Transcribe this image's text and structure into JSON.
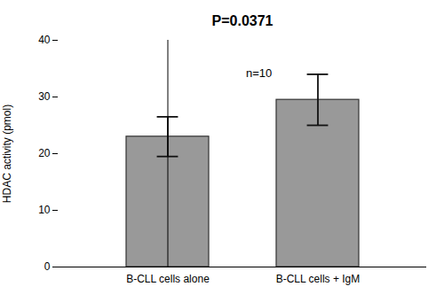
{
  "chart_data": {
    "type": "bar",
    "title": "P=0.0371",
    "categories": [
      "B-CLL cells alone",
      "B-CLL cells + IgM"
    ],
    "values": [
      23.0,
      29.5
    ],
    "errors": [
      3.5,
      4.5
    ],
    "color": "#999999",
    "ylabel": "HDAC activity (pmol)",
    "ylim": [
      0,
      40
    ],
    "yticks": [
      0,
      10,
      20,
      30,
      40
    ],
    "grid": false,
    "annotation": "n=10"
  }
}
